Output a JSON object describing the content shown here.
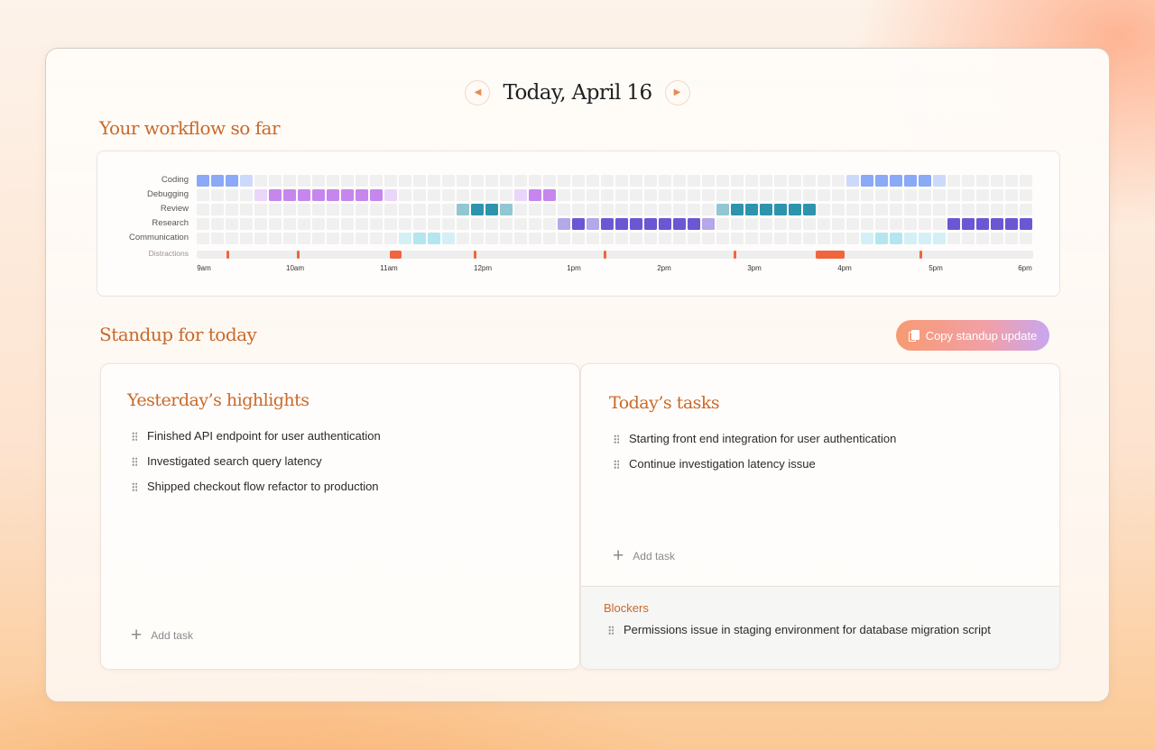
{
  "header": {
    "date": "Today, April 16",
    "prev_icon": "chevron-left-icon",
    "next_icon": "chevron-right-icon",
    "accent": "#e98a52"
  },
  "workflow": {
    "title": "Your workflow so far",
    "rows": [
      "Coding",
      "Debugging",
      "Review",
      "Research",
      "Communication"
    ],
    "distractions_label": "Distractions",
    "ticks": [
      "9am",
      "10am",
      "11am",
      "12pm",
      "1pm",
      "2pm",
      "3pm",
      "4pm",
      "5pm",
      "6pm"
    ],
    "colors": {
      "Coding": [
        "#ccd9fb",
        "#a9c0f9",
        "#8aa9f6"
      ],
      "Debugging": [
        "#ead6fb",
        "#d7a9f5",
        "#c686ee"
      ],
      "Review": [
        "#bfe1e8",
        "#92c6d3",
        "#2e94ad"
      ],
      "Research": [
        "#dcd6f7",
        "#b4a8e8",
        "#6a57d3"
      ],
      "Communication": [
        "#d3f0f6",
        "#b3e6f0",
        "#8fdbea"
      ],
      "empty": "#f0f0f0",
      "distraction": "#f0653e",
      "distraction_track": "#eeeeee"
    }
  },
  "standup": {
    "title": "Standup for today",
    "copy_label": "Copy standup update",
    "copy_icon": "copy-icon",
    "yesterday": {
      "title": "Yesterday’s highlights",
      "items": [
        "Finished API endpoint for user authentication",
        "Investigated search query latency",
        "Shipped checkout flow refactor to production"
      ],
      "add_label": "Add task"
    },
    "today": {
      "title": "Today’s tasks",
      "items": [
        "Starting front end integration for user authentication",
        "Continue investigation latency issue"
      ],
      "add_label": "Add task"
    },
    "blockers": {
      "title": "Blockers",
      "items": [
        "Permissions issue in staging environment for database migration script"
      ]
    }
  }
}
